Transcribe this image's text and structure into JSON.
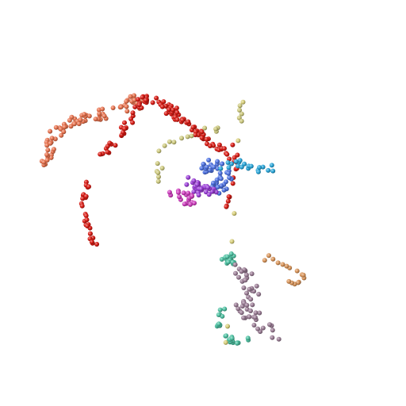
{
  "scene": {
    "background": "#ffffff",
    "clusters": [
      {
        "name": "salmon-cluster",
        "color": "#e8734f",
        "count": 80
      },
      {
        "name": "red-arc-cluster",
        "color": "#d81b14",
        "count": 105
      },
      {
        "name": "red-chain-cluster",
        "color": "#d81b14",
        "count": 26
      },
      {
        "name": "red-dropdown-cluster",
        "color": "#d81b14",
        "count": 12
      },
      {
        "name": "blue-spiral-cluster",
        "color": "#4f73e2",
        "count": 45
      },
      {
        "name": "violet-spiral-cluster",
        "color": "#9b3fd8",
        "count": 35
      },
      {
        "name": "magenta-spiral-cluster",
        "color": "#cf3fbf",
        "count": 20
      },
      {
        "name": "cyan-cluster",
        "color": "#2aa6d9",
        "count": 20
      },
      {
        "name": "khaki-cluster",
        "color": "#cdc97e",
        "count": 22
      },
      {
        "name": "teal-upper-cluster",
        "color": "#4fc2a3",
        "count": 28
      },
      {
        "name": "teal-lower-cluster",
        "color": "#4fc2a3",
        "count": 26
      },
      {
        "name": "mauve-cluster",
        "color": "#9c7e96",
        "count": 55
      },
      {
        "name": "tan-cluster",
        "color": "#d9955a",
        "count": 16
      },
      {
        "name": "pale-yellow-cluster",
        "color": "#d8cf7a",
        "count": 6
      }
    ]
  }
}
